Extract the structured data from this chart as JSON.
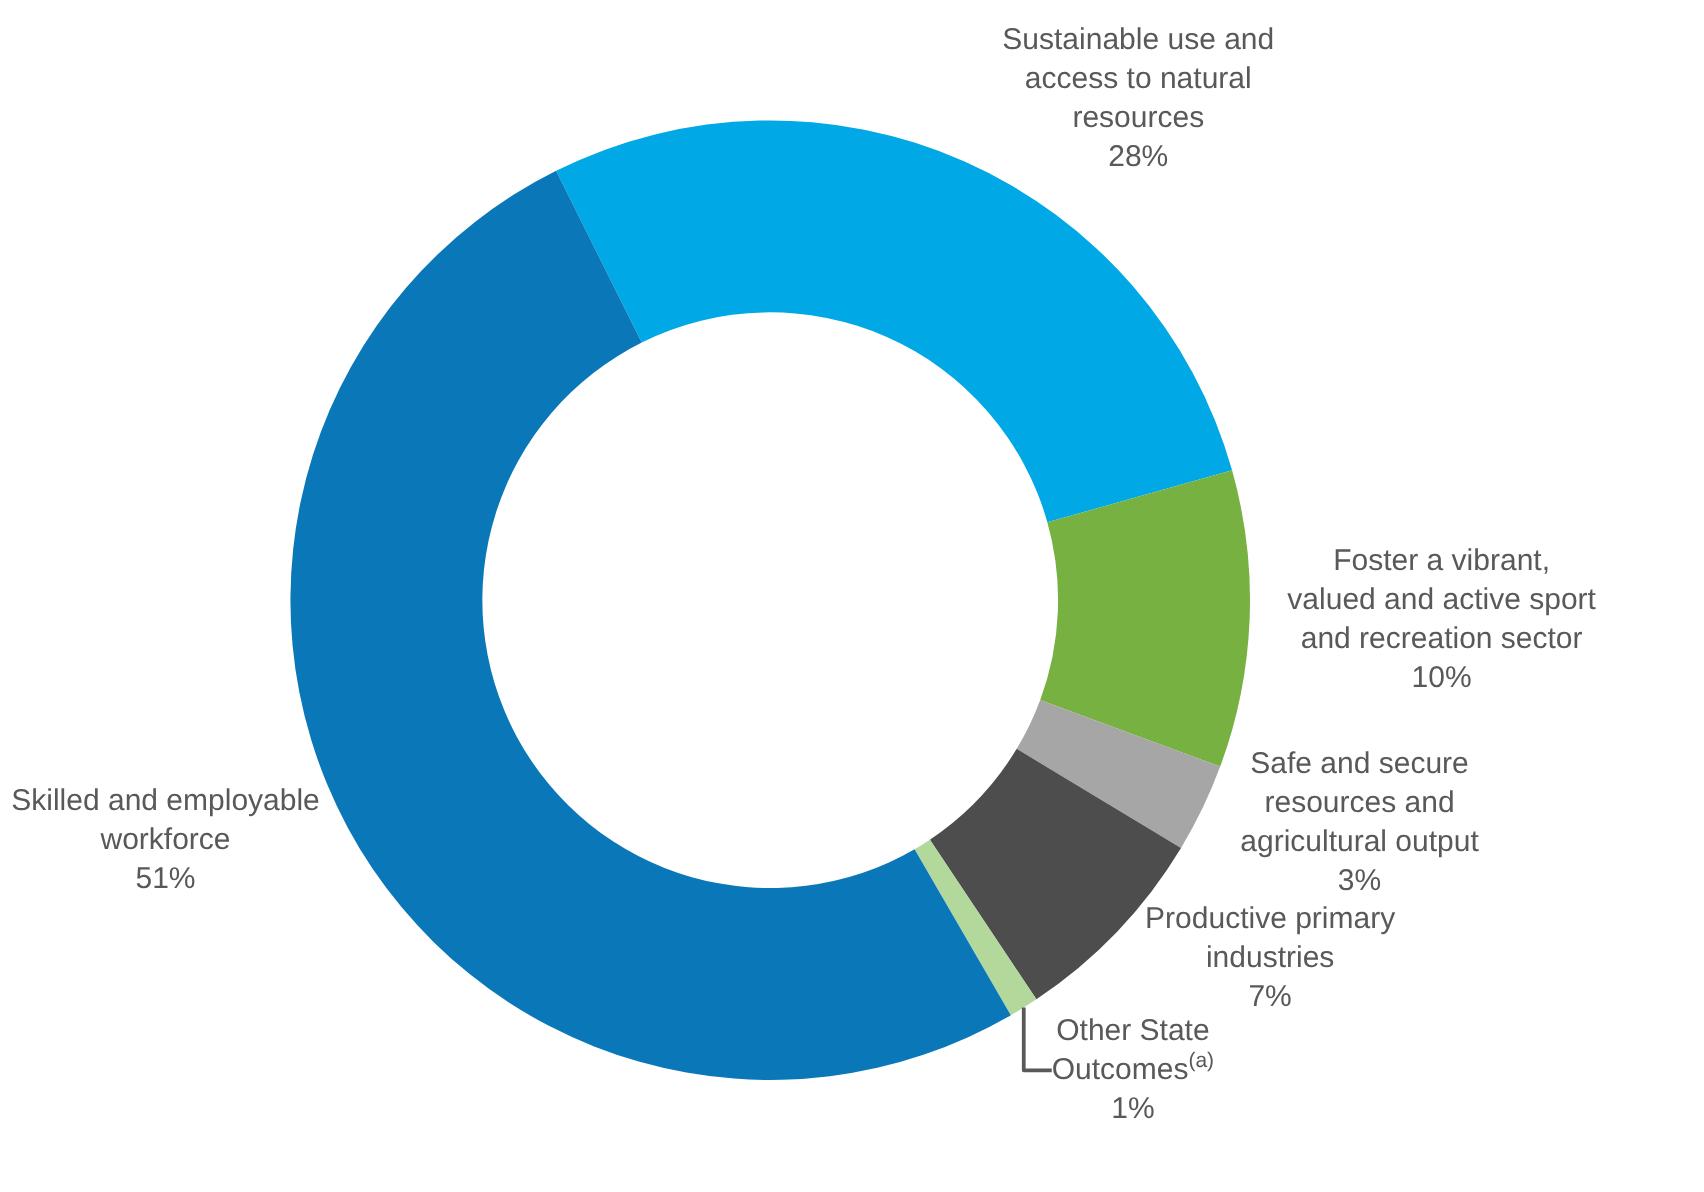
{
  "chart_data": {
    "type": "donut",
    "categories": [
      "Sustainable use and access to natural resources",
      "Foster a vibrant, valued and active sport and recreation sector",
      "Safe and secure resources and agricultural output",
      "Productive primary industries",
      "Other State Outcomes$^{(a)}$",
      "Skilled and employable workforce"
    ],
    "values": [
      28,
      10,
      3,
      7,
      1,
      51
    ],
    "colors": [
      "#00a9e6",
      "#76b142",
      "#a6a6a6",
      "#4d4d4d",
      "#b3d89c",
      "#0a78b8"
    ],
    "value_labels": [
      "28%",
      "10%",
      "3%",
      "7%",
      "1%",
      "51%"
    ],
    "legend": false
  }
}
